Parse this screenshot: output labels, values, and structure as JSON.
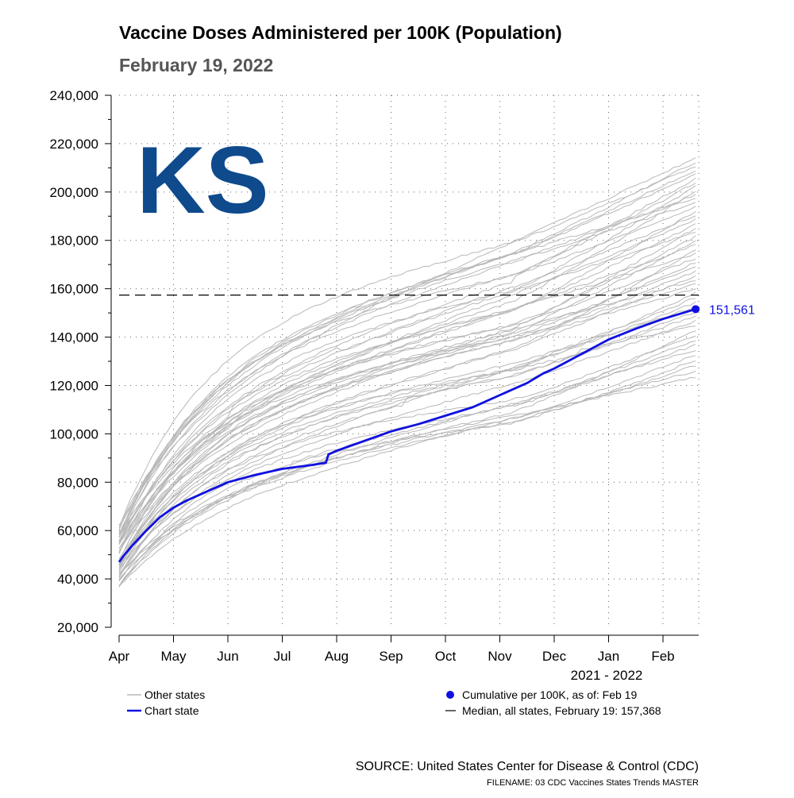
{
  "header": {
    "title": "Vaccine Doses Administered per 100K (Population)",
    "subtitle": "February 19, 2022",
    "state_label": "KS"
  },
  "colors": {
    "state_label": "#0e4a8c",
    "chart_state": "#1010e0",
    "other_states": "#b8b8b8",
    "median": "#000000"
  },
  "chart_data": {
    "type": "line",
    "title": "Vaccine Doses Administered per 100K (Population)",
    "subtitle": "February 19, 2022",
    "xlabel": "2021 - 2022",
    "ylabel": "",
    "x_ticks": [
      "Apr",
      "May",
      "Jun",
      "Jul",
      "Aug",
      "Sep",
      "Oct",
      "Nov",
      "Dec",
      "Jan",
      "Feb"
    ],
    "x_range_months": [
      0,
      10.6
    ],
    "ylim": [
      20000,
      240000
    ],
    "y_ticks": [
      "20,000",
      "40,000",
      "60,000",
      "80,000",
      "100,000",
      "120,000",
      "140,000",
      "160,000",
      "180,000",
      "200,000",
      "220,000",
      "240,000"
    ],
    "grid": true,
    "median": {
      "value": 157368,
      "label": "Median, all states, February 19: 157,368"
    },
    "end_point": {
      "value": 151561,
      "label": "151,561"
    },
    "series": [
      {
        "name": "Chart state",
        "x": [
          0,
          0.1,
          0.25,
          0.5,
          0.75,
          1.0,
          1.25,
          1.5,
          2.0,
          2.5,
          3.0,
          3.5,
          3.8,
          3.85,
          4.0,
          4.5,
          5.0,
          5.5,
          6.0,
          6.5,
          7.0,
          7.5,
          7.8,
          8.0,
          8.5,
          9.0,
          9.5,
          10.0,
          10.6
        ],
        "values": [
          47000,
          50000,
          54000,
          60000,
          65500,
          69500,
          72500,
          75000,
          80000,
          83000,
          85500,
          87000,
          88000,
          91500,
          93000,
          97000,
          101000,
          104000,
          107500,
          111000,
          116000,
          121000,
          125000,
          127000,
          133000,
          139000,
          143500,
          147500,
          151561
        ]
      }
    ],
    "other_states": {
      "name": "Other states",
      "count": 50,
      "start_range": [
        37000,
        62000
      ],
      "end_range": [
        122000,
        215000
      ]
    },
    "legend": {
      "other_states": "Other states",
      "chart_state": "Chart state",
      "cumulative": "Cumulative per 100K, as of: Feb 19",
      "median": "Median, all states, February 19: 157,368"
    }
  },
  "footer": {
    "source": "SOURCE: United States Center for Disease & Control (CDC)",
    "filename": "FILENAME: 03 CDC Vaccines States Trends MASTER"
  }
}
